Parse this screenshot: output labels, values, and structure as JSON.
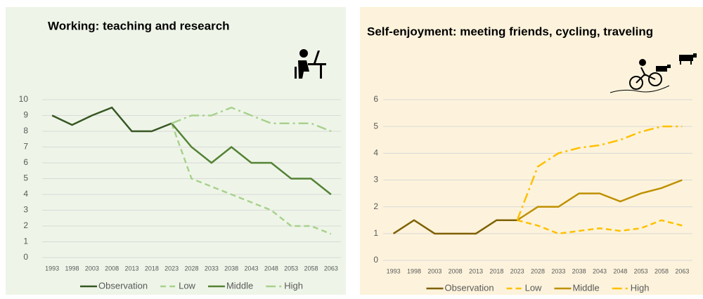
{
  "chart_data": [
    {
      "type": "line",
      "title": "Working: teaching and research",
      "background": "#eef5e8",
      "categories": [
        "1993",
        "1998",
        "2003",
        "2008",
        "2013",
        "2018",
        "2023",
        "2028",
        "2033",
        "2038",
        "2043",
        "2048",
        "2053",
        "2058",
        "2063"
      ],
      "ylim": [
        0,
        10
      ],
      "yticks": [
        0,
        1,
        2,
        3,
        4,
        5,
        6,
        7,
        8,
        9,
        10
      ],
      "grid": true,
      "legend": "bottom",
      "series": [
        {
          "name": "Observation",
          "color": "#375623",
          "dash": "solid",
          "values": [
            9,
            8.4,
            9,
            9.5,
            8,
            8,
            8.5,
            null,
            null,
            null,
            null,
            null,
            null,
            null,
            null
          ]
        },
        {
          "name": "Low",
          "color": "#a9d18e",
          "dash": "dashed",
          "values": [
            null,
            null,
            null,
            null,
            null,
            null,
            8.5,
            5,
            4.5,
            4,
            3.5,
            3,
            2,
            2,
            1.5
          ]
        },
        {
          "name": "Middle",
          "color": "#548235",
          "dash": "solid",
          "values": [
            null,
            null,
            null,
            null,
            null,
            null,
            8.5,
            7,
            6,
            7,
            6,
            6,
            5,
            5,
            4
          ]
        },
        {
          "name": "High",
          "color": "#a9d18e",
          "dash": "dashdot",
          "values": [
            null,
            null,
            null,
            null,
            null,
            null,
            8.5,
            9,
            9,
            9.5,
            9,
            8.5,
            8.5,
            8.5,
            8
          ]
        }
      ]
    },
    {
      "type": "line",
      "title": "Self-enjoyment: meeting friends, cycling, traveling",
      "background": "#fdf3dc",
      "categories": [
        "1993",
        "1998",
        "2003",
        "2008",
        "2013",
        "2018",
        "2023",
        "2028",
        "2033",
        "2038",
        "2043",
        "2048",
        "2053",
        "2058",
        "2063"
      ],
      "ylim": [
        0,
        6
      ],
      "yticks": [
        0,
        1,
        2,
        3,
        4,
        5,
        6
      ],
      "grid": true,
      "legend": "bottom",
      "series": [
        {
          "name": "Observation",
          "color": "#7f6000",
          "dash": "solid",
          "values": [
            1,
            1.5,
            1,
            1,
            1,
            1.5,
            1.5,
            null,
            null,
            null,
            null,
            null,
            null,
            null,
            null
          ]
        },
        {
          "name": "Low",
          "color": "#ffc000",
          "dash": "dashed",
          "values": [
            null,
            null,
            null,
            null,
            null,
            null,
            1.5,
            1.3,
            1,
            1.1,
            1.2,
            1.1,
            1.2,
            1.5,
            1.3
          ]
        },
        {
          "name": "Middle",
          "color": "#bf9000",
          "dash": "solid",
          "values": [
            null,
            null,
            null,
            null,
            null,
            null,
            1.5,
            2,
            2,
            2.5,
            2.5,
            2.2,
            2.5,
            2.7,
            3
          ]
        },
        {
          "name": "High",
          "color": "#ffc000",
          "dash": "dashdot",
          "values": [
            null,
            null,
            null,
            null,
            null,
            null,
            1.5,
            3.5,
            4,
            4.2,
            4.3,
            4.5,
            4.8,
            5,
            5
          ]
        }
      ]
    }
  ]
}
